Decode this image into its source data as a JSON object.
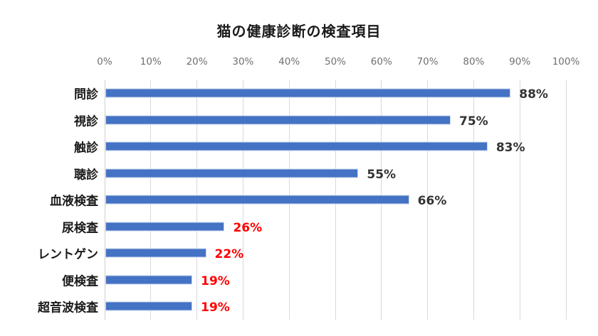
{
  "chart_data": {
    "type": "bar",
    "orientation": "horizontal",
    "title": "猫の健康診断の検査項目",
    "xlabel": "",
    "ylabel": "",
    "xlim": [
      0,
      100
    ],
    "x_ticks": [
      "0%",
      "10%",
      "20%",
      "30%",
      "40%",
      "50%",
      "60%",
      "70%",
      "80%",
      "90%",
      "100%"
    ],
    "grid": true,
    "legend": null,
    "categories": [
      "問診",
      "視診",
      "触診",
      "聴診",
      "血液検査",
      "尿検査",
      "レントゲン",
      "便検査",
      "超音波検査"
    ],
    "values": [
      88,
      75,
      83,
      55,
      66,
      26,
      22,
      19,
      19
    ],
    "value_labels": [
      "88%",
      "75%",
      "83%",
      "55%",
      "66%",
      "26%",
      "22%",
      "19%",
      "19%"
    ],
    "label_colors": [
      "#333333",
      "#333333",
      "#333333",
      "#333333",
      "#333333",
      "#ff0000",
      "#ff0000",
      "#ff0000",
      "#ff0000"
    ],
    "bar_color": "#4472c4"
  }
}
